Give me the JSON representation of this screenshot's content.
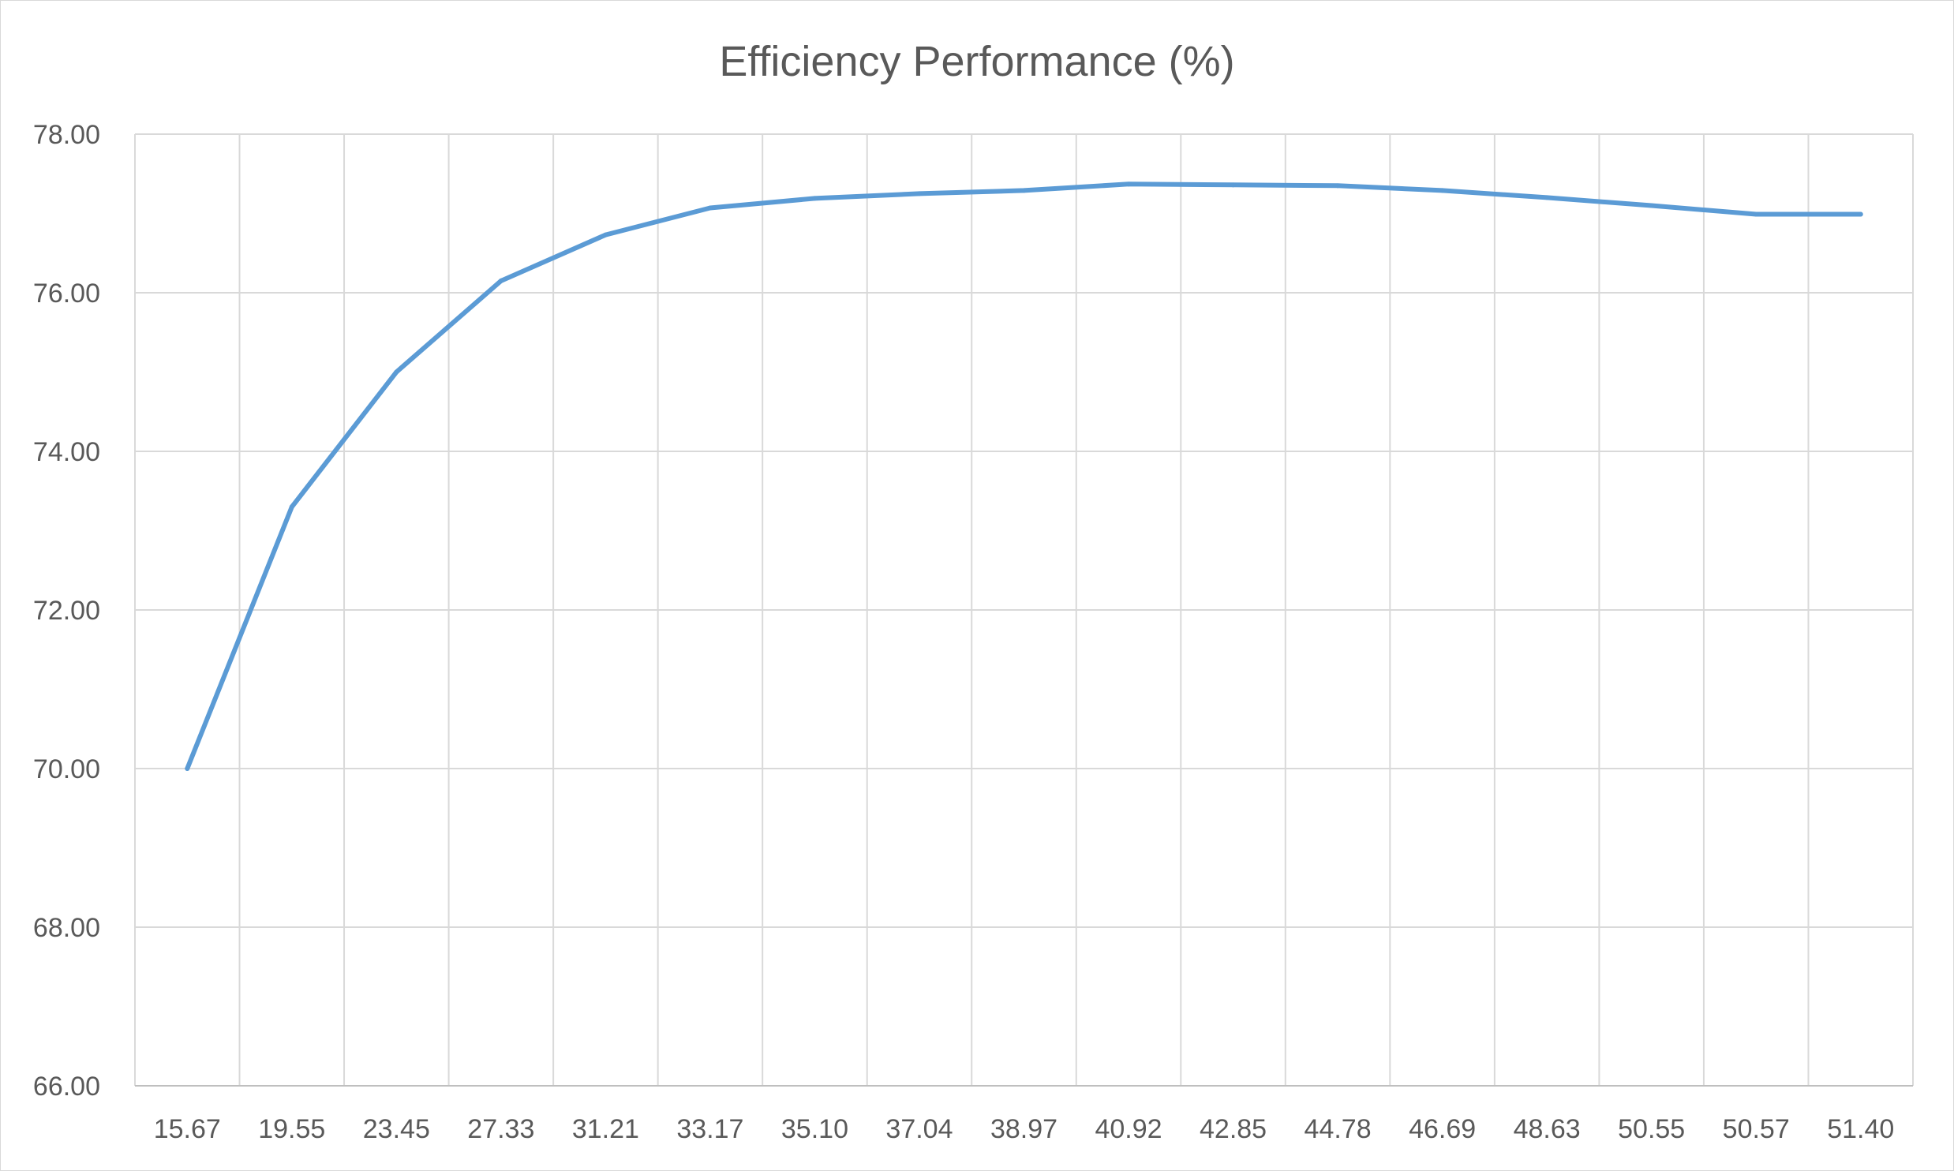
{
  "chart_data": {
    "type": "line",
    "title": "Efficiency Performance (%)",
    "xlabel": "",
    "ylabel": "",
    "categories": [
      "15.67",
      "19.55",
      "23.45",
      "27.33",
      "31.21",
      "33.17",
      "35.10",
      "37.04",
      "38.97",
      "40.92",
      "42.85",
      "44.78",
      "46.69",
      "48.63",
      "50.55",
      "50.57",
      "51.40"
    ],
    "y_tick_labels": [
      "66.00",
      "68.00",
      "70.00",
      "72.00",
      "74.00",
      "76.00",
      "78.00"
    ],
    "ylim": [
      66,
      78
    ],
    "grid": true,
    "legend": "none",
    "series": [
      {
        "color": "#5b9bd5",
        "values": [
          70.0,
          73.3,
          75.0,
          76.15,
          76.73,
          77.07,
          77.19,
          77.25,
          77.29,
          77.37,
          77.36,
          77.35,
          77.29,
          77.2,
          77.1,
          76.99,
          76.99
        ]
      }
    ]
  }
}
